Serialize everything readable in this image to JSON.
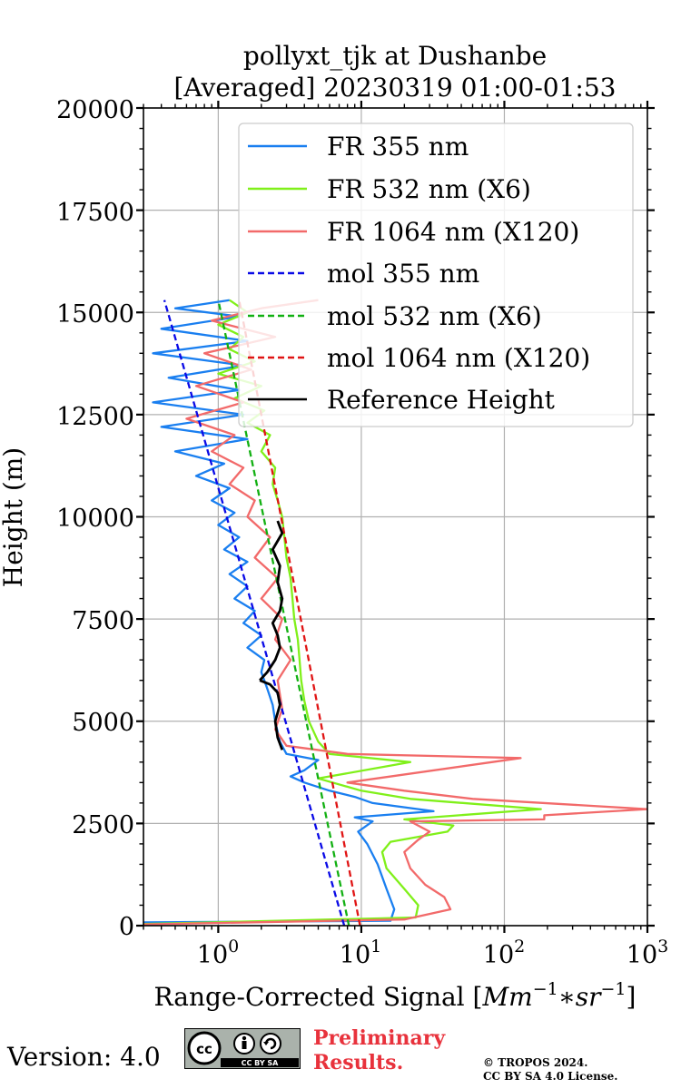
{
  "chart_data": {
    "type": "line",
    "title_line1": "pollyxt_tjk at Dushanbe",
    "title_line2": "[Averaged] 20230319 01:00-01:53",
    "xlabel_text": "Range-Corrected Signal [",
    "xlabel_unit": "Mm",
    "xlabel_exp1": "−1",
    "xlabel_mid": "∗sr",
    "xlabel_exp2": "−1",
    "xlabel_close": "]",
    "ylabel": "Height (m)",
    "xscale": "log",
    "xlim": [
      0.3,
      1000
    ],
    "ylim": [
      0,
      20000
    ],
    "grid": true,
    "legend_position": "top-right",
    "x_tick_labels": [
      "10",
      "0",
      "10",
      "1",
      "10",
      "2",
      "10",
      "3"
    ],
    "y_ticks": [
      "0",
      "2500",
      "5000",
      "7500",
      "10000",
      "12500",
      "15000",
      "17500",
      "20000"
    ],
    "series": [
      {
        "name": "FR 355 nm",
        "color": "#1a7ff0",
        "style": "solid",
        "points": [
          [
            0.3,
            80
          ],
          [
            16,
            120
          ],
          [
            17,
            400
          ],
          [
            15,
            900
          ],
          [
            13,
            1500
          ],
          [
            11,
            2000
          ],
          [
            9.5,
            2300
          ],
          [
            12,
            2550
          ],
          [
            9,
            2650
          ],
          [
            32,
            2800
          ],
          [
            12,
            3000
          ],
          [
            9,
            3150
          ],
          [
            6,
            3300
          ],
          [
            4,
            3500
          ],
          [
            3.2,
            3650
          ],
          [
            4,
            3800
          ],
          [
            5,
            4050
          ],
          [
            3,
            4200
          ],
          [
            2.7,
            4500
          ],
          [
            2.5,
            5000
          ],
          [
            2.4,
            5400
          ],
          [
            2.2,
            5800
          ],
          [
            2.0,
            6200
          ],
          [
            2.1,
            6500
          ],
          [
            1.6,
            6800
          ],
          [
            2.0,
            7100
          ],
          [
            1.5,
            7400
          ],
          [
            1.8,
            7700
          ],
          [
            1.3,
            8000
          ],
          [
            1.6,
            8300
          ],
          [
            1.2,
            8600
          ],
          [
            1.6,
            8900
          ],
          [
            1.1,
            9200
          ],
          [
            1.4,
            9500
          ],
          [
            1.0,
            9800
          ],
          [
            1.3,
            10100
          ],
          [
            0.9,
            10400
          ],
          [
            1.2,
            10700
          ],
          [
            0.7,
            11000
          ],
          [
            1.1,
            11300
          ],
          [
            0.5,
            11600
          ],
          [
            1.6,
            11900
          ],
          [
            0.4,
            12200
          ],
          [
            1.5,
            12500
          ],
          [
            0.35,
            12800
          ],
          [
            1.4,
            13100
          ],
          [
            0.45,
            13400
          ],
          [
            1.5,
            13700
          ],
          [
            0.35,
            14000
          ],
          [
            1.6,
            14300
          ],
          [
            0.4,
            14600
          ],
          [
            1.4,
            14900
          ],
          [
            0.5,
            15100
          ],
          [
            1.2,
            15300
          ]
        ]
      },
      {
        "name": "FR 532 nm (X6)",
        "color": "#80f01a",
        "style": "solid",
        "points": [
          [
            0.3,
            40
          ],
          [
            24,
            200
          ],
          [
            25,
            500
          ],
          [
            20,
            900
          ],
          [
            15,
            1400
          ],
          [
            14,
            1800
          ],
          [
            16,
            2050
          ],
          [
            40,
            2300
          ],
          [
            44,
            2450
          ],
          [
            20,
            2600
          ],
          [
            180,
            2850
          ],
          [
            22,
            3100
          ],
          [
            10,
            3300
          ],
          [
            5,
            3600
          ],
          [
            22,
            4000
          ],
          [
            6,
            4200
          ],
          [
            5,
            4500
          ],
          [
            4.3,
            5000
          ],
          [
            4.0,
            5500
          ],
          [
            3.8,
            6000
          ],
          [
            3.7,
            6500
          ],
          [
            3.6,
            7000
          ],
          [
            3.4,
            7500
          ],
          [
            3.3,
            8000
          ],
          [
            3.2,
            8500
          ],
          [
            3.0,
            9000
          ],
          [
            2.9,
            9500
          ],
          [
            2.8,
            10000
          ],
          [
            2.6,
            10400
          ],
          [
            2.4,
            10800
          ],
          [
            2.5,
            11200
          ],
          [
            2.0,
            11600
          ],
          [
            2.3,
            12000
          ],
          [
            1.6,
            12300
          ],
          [
            2.1,
            12600
          ],
          [
            1.3,
            12900
          ],
          [
            2.0,
            13200
          ],
          [
            1.0,
            13500
          ],
          [
            1.8,
            13800
          ],
          [
            1.2,
            14100
          ],
          [
            1.5,
            14400
          ],
          [
            1.0,
            14700
          ],
          [
            1.6,
            15000
          ],
          [
            1.2,
            15300
          ]
        ]
      },
      {
        "name": "FR 1064 nm (X120)",
        "color": "#f26a6a",
        "style": "solid",
        "points": [
          [
            0.3,
            30
          ],
          [
            20,
            150
          ],
          [
            42,
            400
          ],
          [
            38,
            700
          ],
          [
            28,
            1000
          ],
          [
            22,
            1400
          ],
          [
            20,
            1800
          ],
          [
            25,
            2100
          ],
          [
            30,
            2300
          ],
          [
            22,
            2550
          ],
          [
            190,
            2600
          ],
          [
            190,
            2700
          ],
          [
            1000,
            2850
          ],
          [
            60,
            3100
          ],
          [
            20,
            3300
          ],
          [
            8,
            3500
          ],
          [
            130,
            4100
          ],
          [
            8,
            4200
          ],
          [
            3,
            4400
          ],
          [
            2.5,
            4800
          ],
          [
            2.8,
            5300
          ],
          [
            2.6,
            6000
          ],
          [
            3.2,
            6500
          ],
          [
            2.5,
            7000
          ],
          [
            2.8,
            7500
          ],
          [
            2.0,
            8000
          ],
          [
            2.6,
            8500
          ],
          [
            1.8,
            9000
          ],
          [
            2.3,
            9500
          ],
          [
            1.6,
            10000
          ],
          [
            1.8,
            10400
          ],
          [
            1.2,
            10800
          ],
          [
            1.5,
            11200
          ],
          [
            0.9,
            11600
          ],
          [
            1.3,
            12000
          ],
          [
            0.6,
            12400
          ],
          [
            1.5,
            12800
          ],
          [
            0.7,
            13200
          ],
          [
            1.7,
            13600
          ],
          [
            0.8,
            14000
          ],
          [
            2.5,
            14400
          ],
          [
            0.9,
            14800
          ],
          [
            2.0,
            15100
          ],
          [
            5,
            15300
          ]
        ]
      },
      {
        "name": "mol 355 nm",
        "color": "#0a0ae6",
        "style": "dashed",
        "points": [
          [
            7.6,
            0
          ],
          [
            0.42,
            15300
          ]
        ]
      },
      {
        "name": "mol 532 nm (X6)",
        "color": "#12b012",
        "style": "dashed",
        "points": [
          [
            8.2,
            0
          ],
          [
            1.0,
            15300
          ]
        ]
      },
      {
        "name": "mol 1064 nm (X120)",
        "color": "#e01414",
        "style": "dashed",
        "points": [
          [
            9.8,
            0
          ],
          [
            1.4,
            15300
          ]
        ]
      },
      {
        "name": "Reference Height",
        "color": "#000000",
        "style": "solid",
        "segments": [
          [
            [
              1.95,
              6000
            ],
            [
              2.2,
              6200
            ],
            [
              2.5,
              6500
            ],
            [
              2.7,
              6800
            ],
            [
              2.6,
              7100
            ],
            [
              2.4,
              7400
            ],
            [
              2.7,
              7700
            ],
            [
              2.8,
              8000
            ],
            [
              2.6,
              8400
            ],
            [
              2.7,
              8800
            ],
            [
              2.4,
              9200
            ],
            [
              2.8,
              9600
            ],
            [
              2.6,
              9900
            ]
          ],
          [
            [
              2.8,
              4300
            ],
            [
              2.6,
              4600
            ],
            [
              2.5,
              5000
            ],
            [
              2.7,
              5400
            ],
            [
              2.6,
              5700
            ],
            [
              2.3,
              5900
            ],
            [
              1.95,
              6000
            ]
          ]
        ]
      }
    ]
  },
  "footer": {
    "version_label": "Version: 4.0",
    "license_badge": "CC BY SA",
    "preliminary_line1": "Preliminary",
    "preliminary_line2": "Results.",
    "copyright_line1": "© TROPOS 2024.",
    "copyright_line2": "CC BY SA 4.0 License."
  }
}
